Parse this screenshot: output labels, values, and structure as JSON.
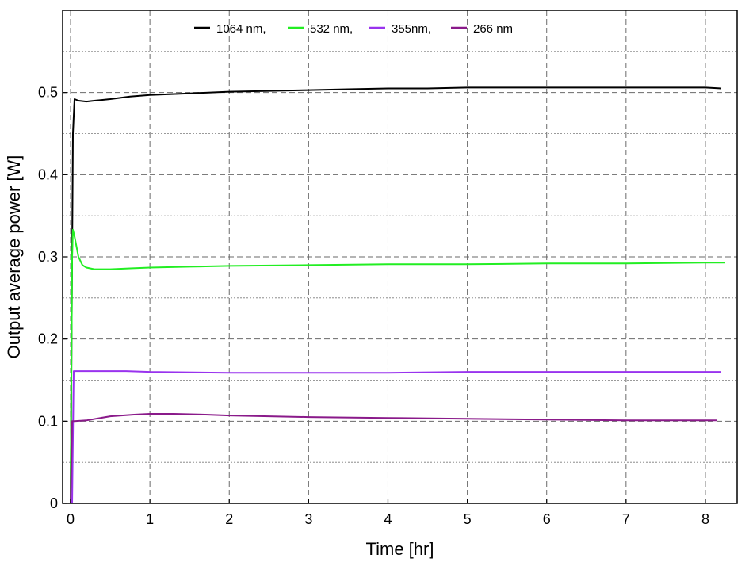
{
  "chart_data": {
    "type": "line",
    "title": "",
    "xlabel": "Time [hr]",
    "ylabel": "Output average power [W]",
    "xlim": [
      -0.1,
      8.4
    ],
    "ylim": [
      0,
      0.6
    ],
    "xticks": [
      0,
      1,
      2,
      3,
      4,
      5,
      6,
      7,
      8
    ],
    "xtick_labels": [
      "0",
      "1",
      "2",
      "3",
      "4",
      "5",
      "6",
      "7",
      "8"
    ],
    "yticks": [
      0,
      0.1,
      0.2,
      0.3,
      0.4,
      0.5
    ],
    "ytick_labels": [
      "0",
      "0.1",
      "0.2",
      "0.3",
      "0.4",
      "0.5"
    ],
    "grid": "on, dashed, with minor gridlines",
    "legend_position": "top",
    "series": [
      {
        "name": "1064 nm,",
        "color": "#000000",
        "x": [
          0.0,
          0.01,
          0.02,
          0.03,
          0.05,
          0.1,
          0.2,
          0.3,
          0.5,
          0.75,
          1.0,
          1.5,
          2.0,
          2.5,
          3.0,
          3.5,
          4.0,
          4.5,
          5.0,
          5.5,
          6.0,
          6.5,
          7.0,
          7.5,
          8.0,
          8.2
        ],
        "y": [
          0.0,
          0.15,
          0.3,
          0.45,
          0.492,
          0.49,
          0.489,
          0.49,
          0.492,
          0.495,
          0.497,
          0.499,
          0.501,
          0.502,
          0.503,
          0.504,
          0.505,
          0.505,
          0.506,
          0.506,
          0.506,
          0.506,
          0.506,
          0.506,
          0.506,
          0.505
        ]
      },
      {
        "name": "532 nm,",
        "color": "#22ee22",
        "x": [
          0.0,
          0.01,
          0.02,
          0.03,
          0.05,
          0.1,
          0.15,
          0.2,
          0.3,
          0.5,
          0.75,
          1.0,
          1.5,
          2.0,
          3.0,
          4.0,
          5.0,
          6.0,
          7.0,
          8.0,
          8.25
        ],
        "y": [
          0.0,
          0.15,
          0.3,
          0.333,
          0.325,
          0.3,
          0.29,
          0.287,
          0.285,
          0.285,
          0.286,
          0.287,
          0.288,
          0.289,
          0.29,
          0.291,
          0.291,
          0.292,
          0.292,
          0.293,
          0.293
        ]
      },
      {
        "name": "355nm,",
        "color": "#9933ee",
        "x": [
          0.02,
          0.03,
          0.04,
          0.05,
          0.3,
          0.7,
          1.0,
          2.0,
          3.0,
          4.0,
          5.0,
          6.0,
          7.0,
          8.0,
          8.2
        ],
        "y": [
          0.0,
          0.08,
          0.161,
          0.161,
          0.161,
          0.161,
          0.16,
          0.159,
          0.159,
          0.159,
          0.16,
          0.16,
          0.16,
          0.16,
          0.16
        ]
      },
      {
        "name": "266 nm",
        "color": "#8a1a8a",
        "x": [
          0.0,
          0.01,
          0.02,
          0.05,
          0.2,
          0.5,
          0.8,
          1.0,
          1.3,
          1.7,
          2.0,
          2.5,
          3.0,
          4.0,
          5.0,
          6.0,
          7.0,
          8.0,
          8.15
        ],
        "y": [
          0.0,
          0.05,
          0.1,
          0.1,
          0.101,
          0.106,
          0.108,
          0.109,
          0.109,
          0.108,
          0.107,
          0.106,
          0.105,
          0.104,
          0.103,
          0.102,
          0.101,
          0.101,
          0.101
        ]
      }
    ]
  }
}
